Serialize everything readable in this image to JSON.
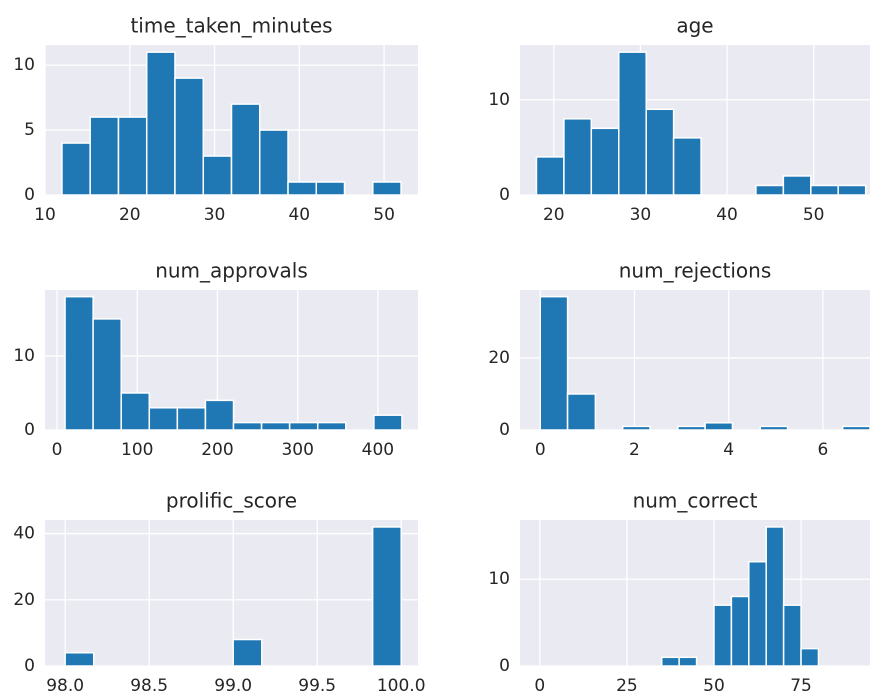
{
  "chart_data": [
    {
      "type": "histogram",
      "title": "time_taken_minutes",
      "color": "#1f77b4",
      "grid": true,
      "bins": [
        12,
        15.33,
        18.67,
        22,
        25.33,
        28.67,
        32,
        35.33,
        38.67,
        42,
        45.33,
        48.67,
        52
      ],
      "counts": [
        4,
        6,
        6,
        11,
        9,
        3,
        7,
        5,
        1,
        1,
        0,
        1
      ],
      "xlim": [
        10,
        54
      ],
      "ylim": [
        0,
        11.55
      ],
      "xticks": [
        10,
        20,
        30,
        40,
        50
      ],
      "yticks": [
        0,
        5,
        10
      ]
    },
    {
      "type": "histogram",
      "title": "age",
      "color": "#1f77b4",
      "grid": true,
      "bins": [
        18,
        21.17,
        24.33,
        27.5,
        30.67,
        33.83,
        37,
        40.17,
        43.33,
        46.5,
        49.67,
        52.83,
        56
      ],
      "counts": [
        4,
        8,
        7,
        15,
        9,
        6,
        0,
        0,
        1,
        2,
        1,
        1
      ],
      "xlim": [
        16.1,
        56.5
      ],
      "ylim": [
        0,
        15.75
      ],
      "xticks": [
        20,
        30,
        40,
        50
      ],
      "yticks": [
        0,
        10
      ]
    },
    {
      "type": "histogram",
      "title": "num_approvals",
      "color": "#1f77b4",
      "grid": true,
      "bins": [
        10,
        45,
        80,
        115,
        150,
        185,
        220,
        255,
        290,
        325,
        360,
        395,
        430
      ],
      "counts": [
        18,
        15,
        5,
        3,
        3,
        4,
        1,
        1,
        1,
        1,
        0,
        2
      ],
      "xlim": [
        -15,
        450
      ],
      "ylim": [
        0,
        18.9
      ],
      "xticks": [
        0,
        100,
        200,
        300,
        400
      ],
      "yticks": [
        0,
        10
      ]
    },
    {
      "type": "histogram",
      "title": "num_rejections",
      "color": "#1f77b4",
      "grid": true,
      "bins": [
        0,
        0.58,
        1.17,
        1.75,
        2.33,
        2.92,
        3.5,
        4.08,
        4.67,
        5.25,
        5.83,
        6.42,
        7
      ],
      "counts": [
        37,
        10,
        0,
        1,
        0,
        1,
        2,
        0,
        1,
        0,
        0,
        1
      ],
      "xlim": [
        -0.43,
        7
      ],
      "ylim": [
        0,
        38.85
      ],
      "xticks": [
        0,
        2,
        4,
        6
      ],
      "yticks": [
        0,
        20
      ]
    },
    {
      "type": "histogram",
      "title": "prolific_score",
      "color": "#1f77b4",
      "grid": true,
      "bins": [
        98,
        98.17,
        98.33,
        98.5,
        98.67,
        98.83,
        99,
        99.17,
        99.33,
        99.5,
        99.67,
        99.83,
        100
      ],
      "counts": [
        4,
        0,
        0,
        0,
        0,
        0,
        8,
        0,
        0,
        0,
        0,
        42
      ],
      "xlim": [
        97.88,
        100.1
      ],
      "ylim": [
        0,
        44.1
      ],
      "xticks": [
        {
          "value": 98,
          "label": "98.0"
        },
        98.5,
        {
          "value": 99,
          "label": "99.0"
        },
        99.5,
        {
          "value": 100,
          "label": "100.0"
        }
      ],
      "yticks": [
        0,
        20,
        40
      ]
    },
    {
      "type": "histogram",
      "title": "num_correct",
      "color": "#1f77b4",
      "grid": true,
      "bins": [
        35,
        40,
        45,
        50,
        55,
        60,
        65,
        70,
        75,
        80
      ],
      "counts": [
        1,
        1,
        0,
        7,
        8,
        12,
        16,
        7,
        2
      ],
      "xlim": [
        -5.7,
        94.8
      ],
      "ylim": [
        0,
        16.8
      ],
      "xticks": [
        0,
        25,
        50,
        75
      ],
      "yticks": [
        0,
        10
      ]
    }
  ]
}
